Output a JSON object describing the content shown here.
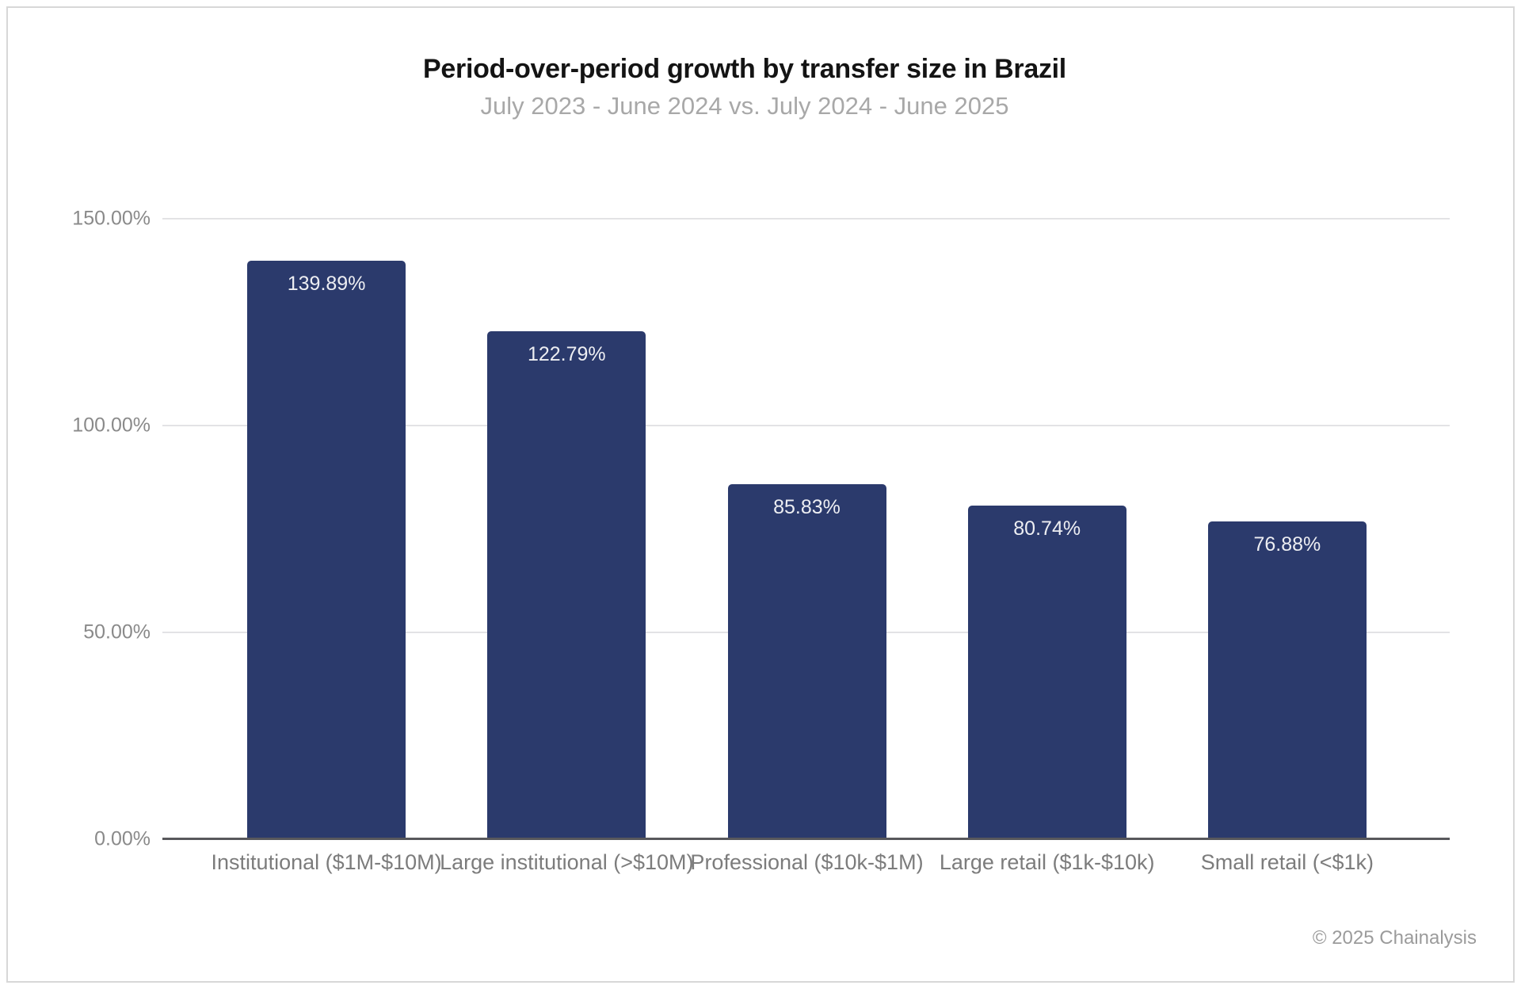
{
  "header": {
    "title": "Period-over-period growth by transfer size in Brazil",
    "subtitle": "July 2023 - June 2024 vs. July 2024 - June 2025"
  },
  "footer": {
    "credit": "© 2025 Chainalysis"
  },
  "chart_data": {
    "type": "bar",
    "title": "Period-over-period growth by transfer size in Brazil",
    "subtitle": "July 2023 - June 2024 vs. July 2024 - June 2025",
    "categories": [
      "Institutional ($1M-$10M)",
      "Large institutional (>$10M)",
      "Professional ($10k-$1M)",
      "Large retail ($1k-$10k)",
      "Small retail (<$1k)"
    ],
    "values": [
      139.89,
      122.79,
      85.83,
      80.74,
      76.88
    ],
    "value_labels": [
      "139.89%",
      "122.79%",
      "85.83%",
      "80.74%",
      "76.88%"
    ],
    "y_ticks": [
      {
        "value": 0,
        "label": "0.00%"
      },
      {
        "value": 50,
        "label": "50.00%"
      },
      {
        "value": 100,
        "label": "100.00%"
      },
      {
        "value": 150,
        "label": "150.00%"
      }
    ],
    "ylim": [
      0,
      150
    ],
    "xlabel": "",
    "ylabel": "",
    "grid": true,
    "legend": "none",
    "colors": {
      "bar": "#2b3a6c",
      "value_label": "#edeef2",
      "gridline": "#e3e3e5",
      "baseline": "#58585c",
      "axis_text": "#8a8a8a"
    }
  }
}
